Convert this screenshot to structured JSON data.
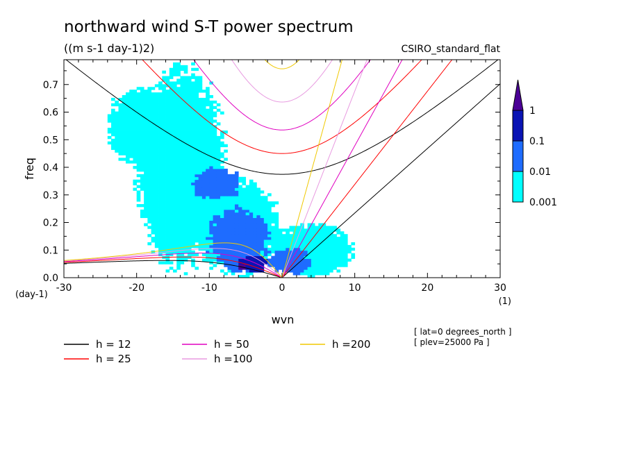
{
  "chart_data": {
    "type": "heatmap",
    "title": "northward wind S-T power spectrum",
    "units": "((m s-1 day-1)2)",
    "model": "CSIRO_standard_flat",
    "xlabel": "wvn",
    "ylabel": "freq",
    "x_unit": "(1)",
    "y_unit": "(day-1)",
    "xlim": [
      -30,
      30
    ],
    "ylim": [
      0,
      0.79
    ],
    "x_ticks": [
      -30,
      -20,
      -10,
      0,
      10,
      20,
      30
    ],
    "x_tick_labels": [
      "-30",
      "-20",
      "-10",
      "0",
      "10",
      "20",
      "30"
    ],
    "y_ticks": [
      0.0,
      0.1,
      0.2,
      0.3,
      0.4,
      0.5,
      0.6,
      0.7
    ],
    "y_tick_labels": [
      "0.0",
      "0.1",
      "0.2",
      "0.3",
      "0.4",
      "0.5",
      "0.6",
      "0.7"
    ],
    "colorbar": {
      "levels": [
        "0.001",
        "0.01",
        "0.1",
        "1"
      ],
      "colors": [
        "#00ffff",
        "#1e6cff",
        "#0a14b4",
        "#4b0096"
      ]
    },
    "dispersion_curves": {
      "equivalent_depths": [
        {
          "name": "h = 12",
          "h": 12,
          "color": "#000000"
        },
        {
          "name": "h = 25",
          "h": 25,
          "color": "#ff0000"
        },
        {
          "name": "h = 50",
          "h": 50,
          "color": "#e000c0"
        },
        {
          "name": "h =100",
          "h": 100,
          "color": "#e89ae0"
        },
        {
          "name": "h =200",
          "h": 200,
          "color": "#f0c800"
        }
      ],
      "families": [
        "kelvin",
        "inertia_gravity_n1",
        "equatorial_rossby_n1"
      ]
    },
    "spectrum_regions": [
      {
        "level": 0,
        "x": -14,
        "y": 0.4,
        "sx": 6.5,
        "sy": 0.38
      },
      {
        "level": 0,
        "x": -6,
        "y": 0.18,
        "sx": 6.0,
        "sy": 0.18
      },
      {
        "level": 0,
        "x": 4,
        "y": 0.1,
        "sx": 6.0,
        "sy": 0.1
      },
      {
        "level": 0,
        "x": -20,
        "y": 0.55,
        "sx": 4.0,
        "sy": 0.15
      },
      {
        "level": 1,
        "x": -6,
        "y": 0.14,
        "sx": 4.5,
        "sy": 0.12
      },
      {
        "level": 1,
        "x": -9,
        "y": 0.34,
        "sx": 3.5,
        "sy": 0.06
      },
      {
        "level": 1,
        "x": 1,
        "y": 0.06,
        "sx": 3.0,
        "sy": 0.05
      },
      {
        "level": 2,
        "x": -4,
        "y": 0.05,
        "sx": 2.2,
        "sy": 0.035
      },
      {
        "level": 3,
        "x": -5.5,
        "y": 0.04,
        "sx": 0.6,
        "sy": 0.01
      }
    ],
    "annotations": [
      "[ lat=0 degrees_north ]",
      "[ plev=25000 Pa ]"
    ]
  }
}
